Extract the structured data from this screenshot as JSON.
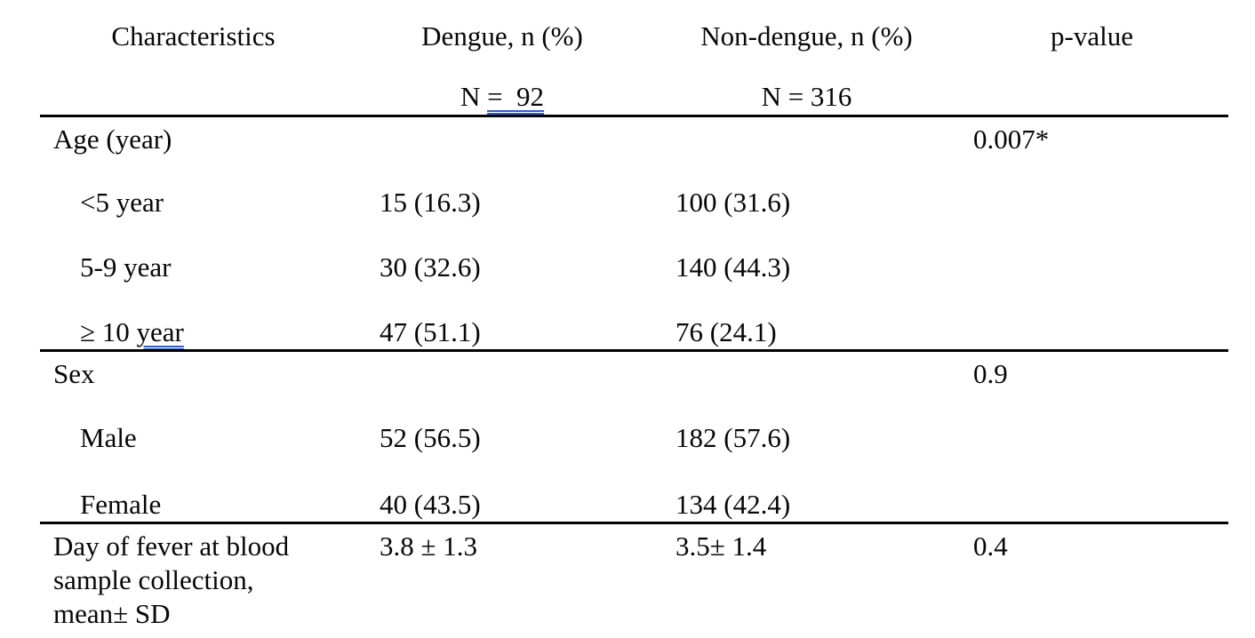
{
  "accent_colors": {
    "grammar_underline": "#2e5ec9",
    "rule_color": "#000000",
    "text_color": "#070707"
  },
  "header": {
    "col1": "Characteristics",
    "col2": "Dengue, n (%)",
    "col3": "Non-dengue, n (%)",
    "col4": "p-value",
    "n_dengue_prefix": "N ",
    "n_dengue_flagged": "=  92",
    "n_nondengue": "N = 316"
  },
  "rows": [
    {
      "type": "section",
      "c1": "Age (year)",
      "c2": "",
      "c3": "",
      "c4": "0.007*"
    },
    {
      "type": "sub",
      "c1": "<5 year",
      "c2": "15 (16.3)",
      "c3": "100 (31.6)",
      "c4": ""
    },
    {
      "type": "sub",
      "c1": "5-9 year",
      "c2": "30 (32.6)",
      "c3": "140 (44.3)",
      "c4": ""
    },
    {
      "type": "sub",
      "c1_prefix": "≥ 10 ",
      "c1_flagged": "year",
      "c2": "47 (51.1)",
      "c3": "76 (24.1)",
      "c4": ""
    },
    {
      "type": "section",
      "c1": "Sex",
      "c2": "",
      "c3": "",
      "c4": "0.9"
    },
    {
      "type": "sub",
      "c1": "Male",
      "c2": "52 (56.5)",
      "c3": "182 (57.6)",
      "c4": ""
    },
    {
      "type": "sub",
      "c1": "Female",
      "c2": "40 (43.5)",
      "c3": "134 (42.4)",
      "c4": ""
    },
    {
      "type": "section",
      "c1_lines": [
        "Day of fever at blood",
        "sample collection,",
        "mean± SD"
      ],
      "c2": "3.8 ± 1.3",
      "c3": "3.5± 1.4",
      "c4": "0.4"
    }
  ]
}
